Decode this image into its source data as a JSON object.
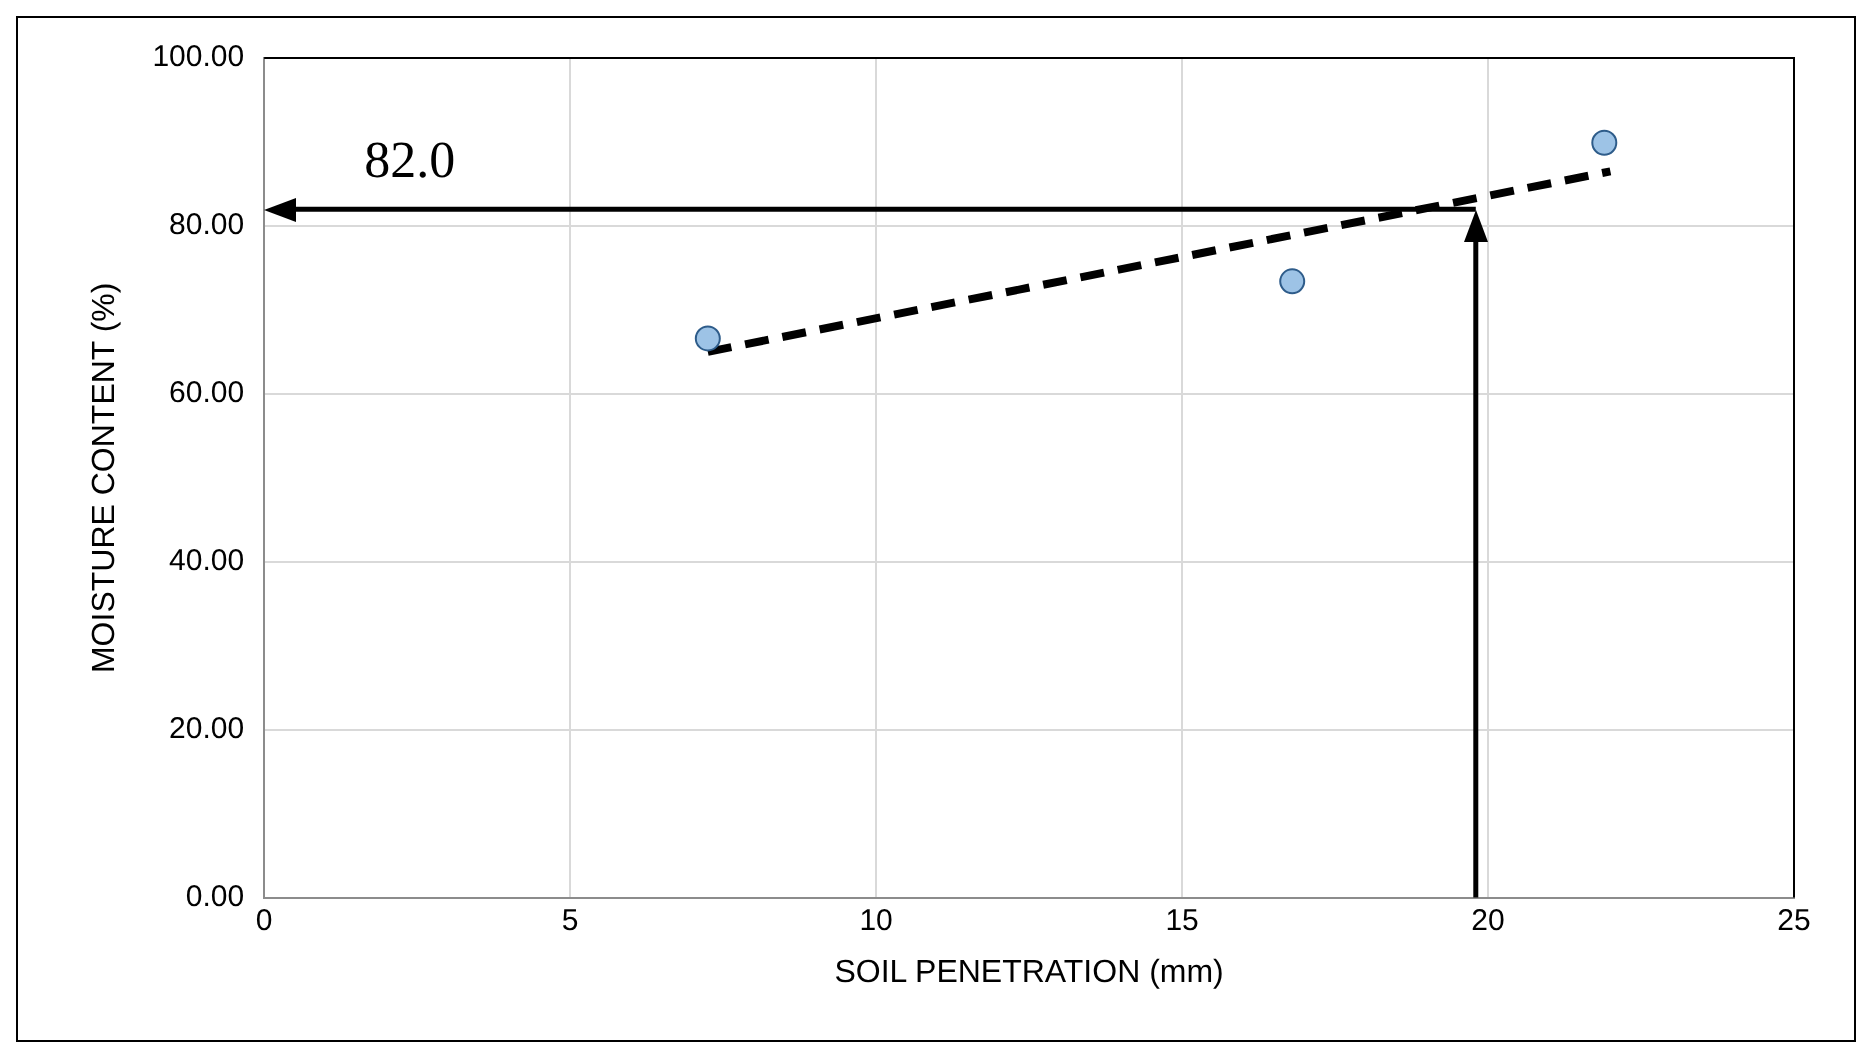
{
  "chart_data": {
    "type": "scatter",
    "xlabel": "SOIL PENETRATION (mm)",
    "ylabel": "MOISTURE CONTENT (%)",
    "series": [
      {
        "type": "scatter",
        "color": "#9dc3e6",
        "x": [
          7.25,
          16.8,
          21.9
        ],
        "values": [
          66.6,
          73.4,
          89.9
        ],
        "marker": "circle"
      },
      {
        "type": "line",
        "color": "#000000",
        "x": [
          7.25,
          22.0
        ],
        "values": [
          65.0,
          86.5
        ],
        "line_style": "dashed",
        "marker": "none"
      }
    ],
    "ref_lines": [
      {
        "axis": "y",
        "value": 82.0,
        "label": "82.0",
        "color": "#000000"
      },
      {
        "axis": "x",
        "value": 19.8,
        "color": "#000000"
      }
    ],
    "xlim": [
      0,
      25
    ],
    "xticks": [
      0,
      5,
      10,
      15,
      20,
      25
    ],
    "ylim": [
      0,
      100
    ],
    "yticks": [
      {
        "value": 0,
        "label": "0.00"
      },
      {
        "value": 20,
        "label": "20.00"
      },
      {
        "value": 40,
        "label": "40.00"
      },
      {
        "value": 60,
        "label": "60.00"
      },
      {
        "value": 80,
        "label": "80.00"
      },
      {
        "value": 100,
        "label": "100.00"
      }
    ],
    "grid": true,
    "legend": false
  }
}
